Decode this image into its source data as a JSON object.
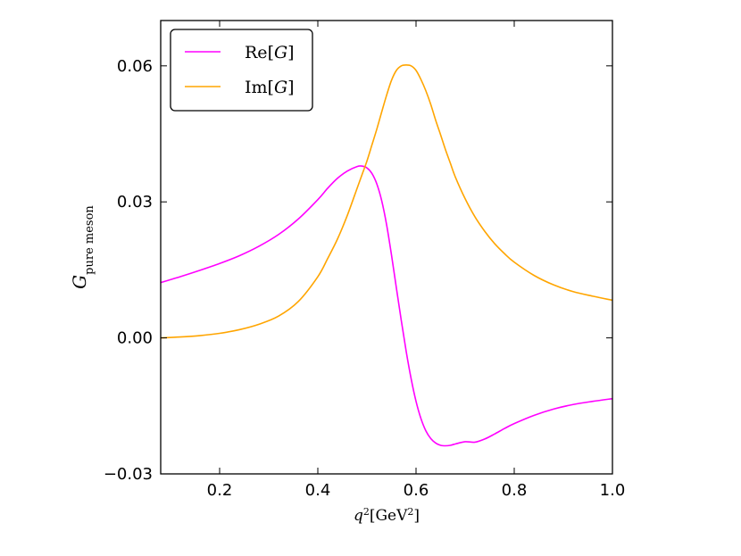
{
  "chart_data": {
    "type": "line",
    "title": "",
    "xlabel": {
      "main": "q",
      "sup": "2",
      "unit_pre": "[GeV",
      "unit_sup": "2",
      "unit_post": "]"
    },
    "ylabel": {
      "main": "G",
      "sub": "pure meson"
    },
    "xlim": [
      0.08,
      1.0
    ],
    "ylim": [
      -0.03,
      0.07
    ],
    "grid": false,
    "legend_position": "top-left",
    "x_ticks": [
      {
        "value": 0.2,
        "label": "0.2"
      },
      {
        "value": 0.4,
        "label": "0.4"
      },
      {
        "value": 0.6,
        "label": "0.6"
      },
      {
        "value": 0.8,
        "label": "0.8"
      },
      {
        "value": 1.0,
        "label": "1.0"
      }
    ],
    "y_ticks": [
      {
        "value": -0.03,
        "label": "−0.03"
      },
      {
        "value": 0.0,
        "label": "0.00"
      },
      {
        "value": 0.03,
        "label": "0.03"
      },
      {
        "value": 0.06,
        "label": "0.06"
      }
    ],
    "x": [
      0.08,
      0.12,
      0.16,
      0.2,
      0.24,
      0.28,
      0.32,
      0.36,
      0.4,
      0.42,
      0.44,
      0.46,
      0.48,
      0.49,
      0.5,
      0.51,
      0.52,
      0.53,
      0.54,
      0.55,
      0.56,
      0.57,
      0.58,
      0.59,
      0.6,
      0.61,
      0.62,
      0.63,
      0.64,
      0.65,
      0.66,
      0.67,
      0.68,
      0.7,
      0.72,
      0.74,
      0.76,
      0.78,
      0.8,
      0.84,
      0.88,
      0.92,
      0.96,
      1.0
    ],
    "series": [
      {
        "name": "Re[G]",
        "label_main": "Re",
        "label_arg": "G",
        "color": "#ff00ff",
        "values": [
          0.0122,
          0.0135,
          0.0149,
          0.0164,
          0.0181,
          0.0202,
          0.0228,
          0.0262,
          0.0305,
          0.033,
          0.0352,
          0.0368,
          0.0378,
          0.0379,
          0.0375,
          0.0363,
          0.034,
          0.0303,
          0.025,
          0.0183,
          0.011,
          0.0038,
          -0.003,
          -0.009,
          -0.014,
          -0.0178,
          -0.0205,
          -0.0222,
          -0.0232,
          -0.0237,
          -0.0238,
          -0.0237,
          -0.0234,
          -0.0229,
          -0.023,
          -0.0223,
          -0.0212,
          -0.02,
          -0.0189,
          -0.0171,
          -0.0157,
          -0.0147,
          -0.014,
          -0.0134
        ]
      },
      {
        "name": "Im[G]",
        "label_main": "Im",
        "label_arg": "G",
        "color": "#ffa500",
        "values": [
          0.0,
          0.0002,
          0.0005,
          0.001,
          0.0018,
          0.003,
          0.0048,
          0.008,
          0.0135,
          0.0175,
          0.0218,
          0.027,
          0.033,
          0.036,
          0.039,
          0.0425,
          0.046,
          0.0498,
          0.0535,
          0.0568,
          0.059,
          0.06,
          0.0602,
          0.06,
          0.059,
          0.057,
          0.0545,
          0.0515,
          0.048,
          0.0448,
          0.0415,
          0.0385,
          0.0355,
          0.0307,
          0.0267,
          0.0235,
          0.0208,
          0.0186,
          0.0167,
          0.0138,
          0.0117,
          0.0102,
          0.0092,
          0.0083
        ]
      }
    ]
  }
}
